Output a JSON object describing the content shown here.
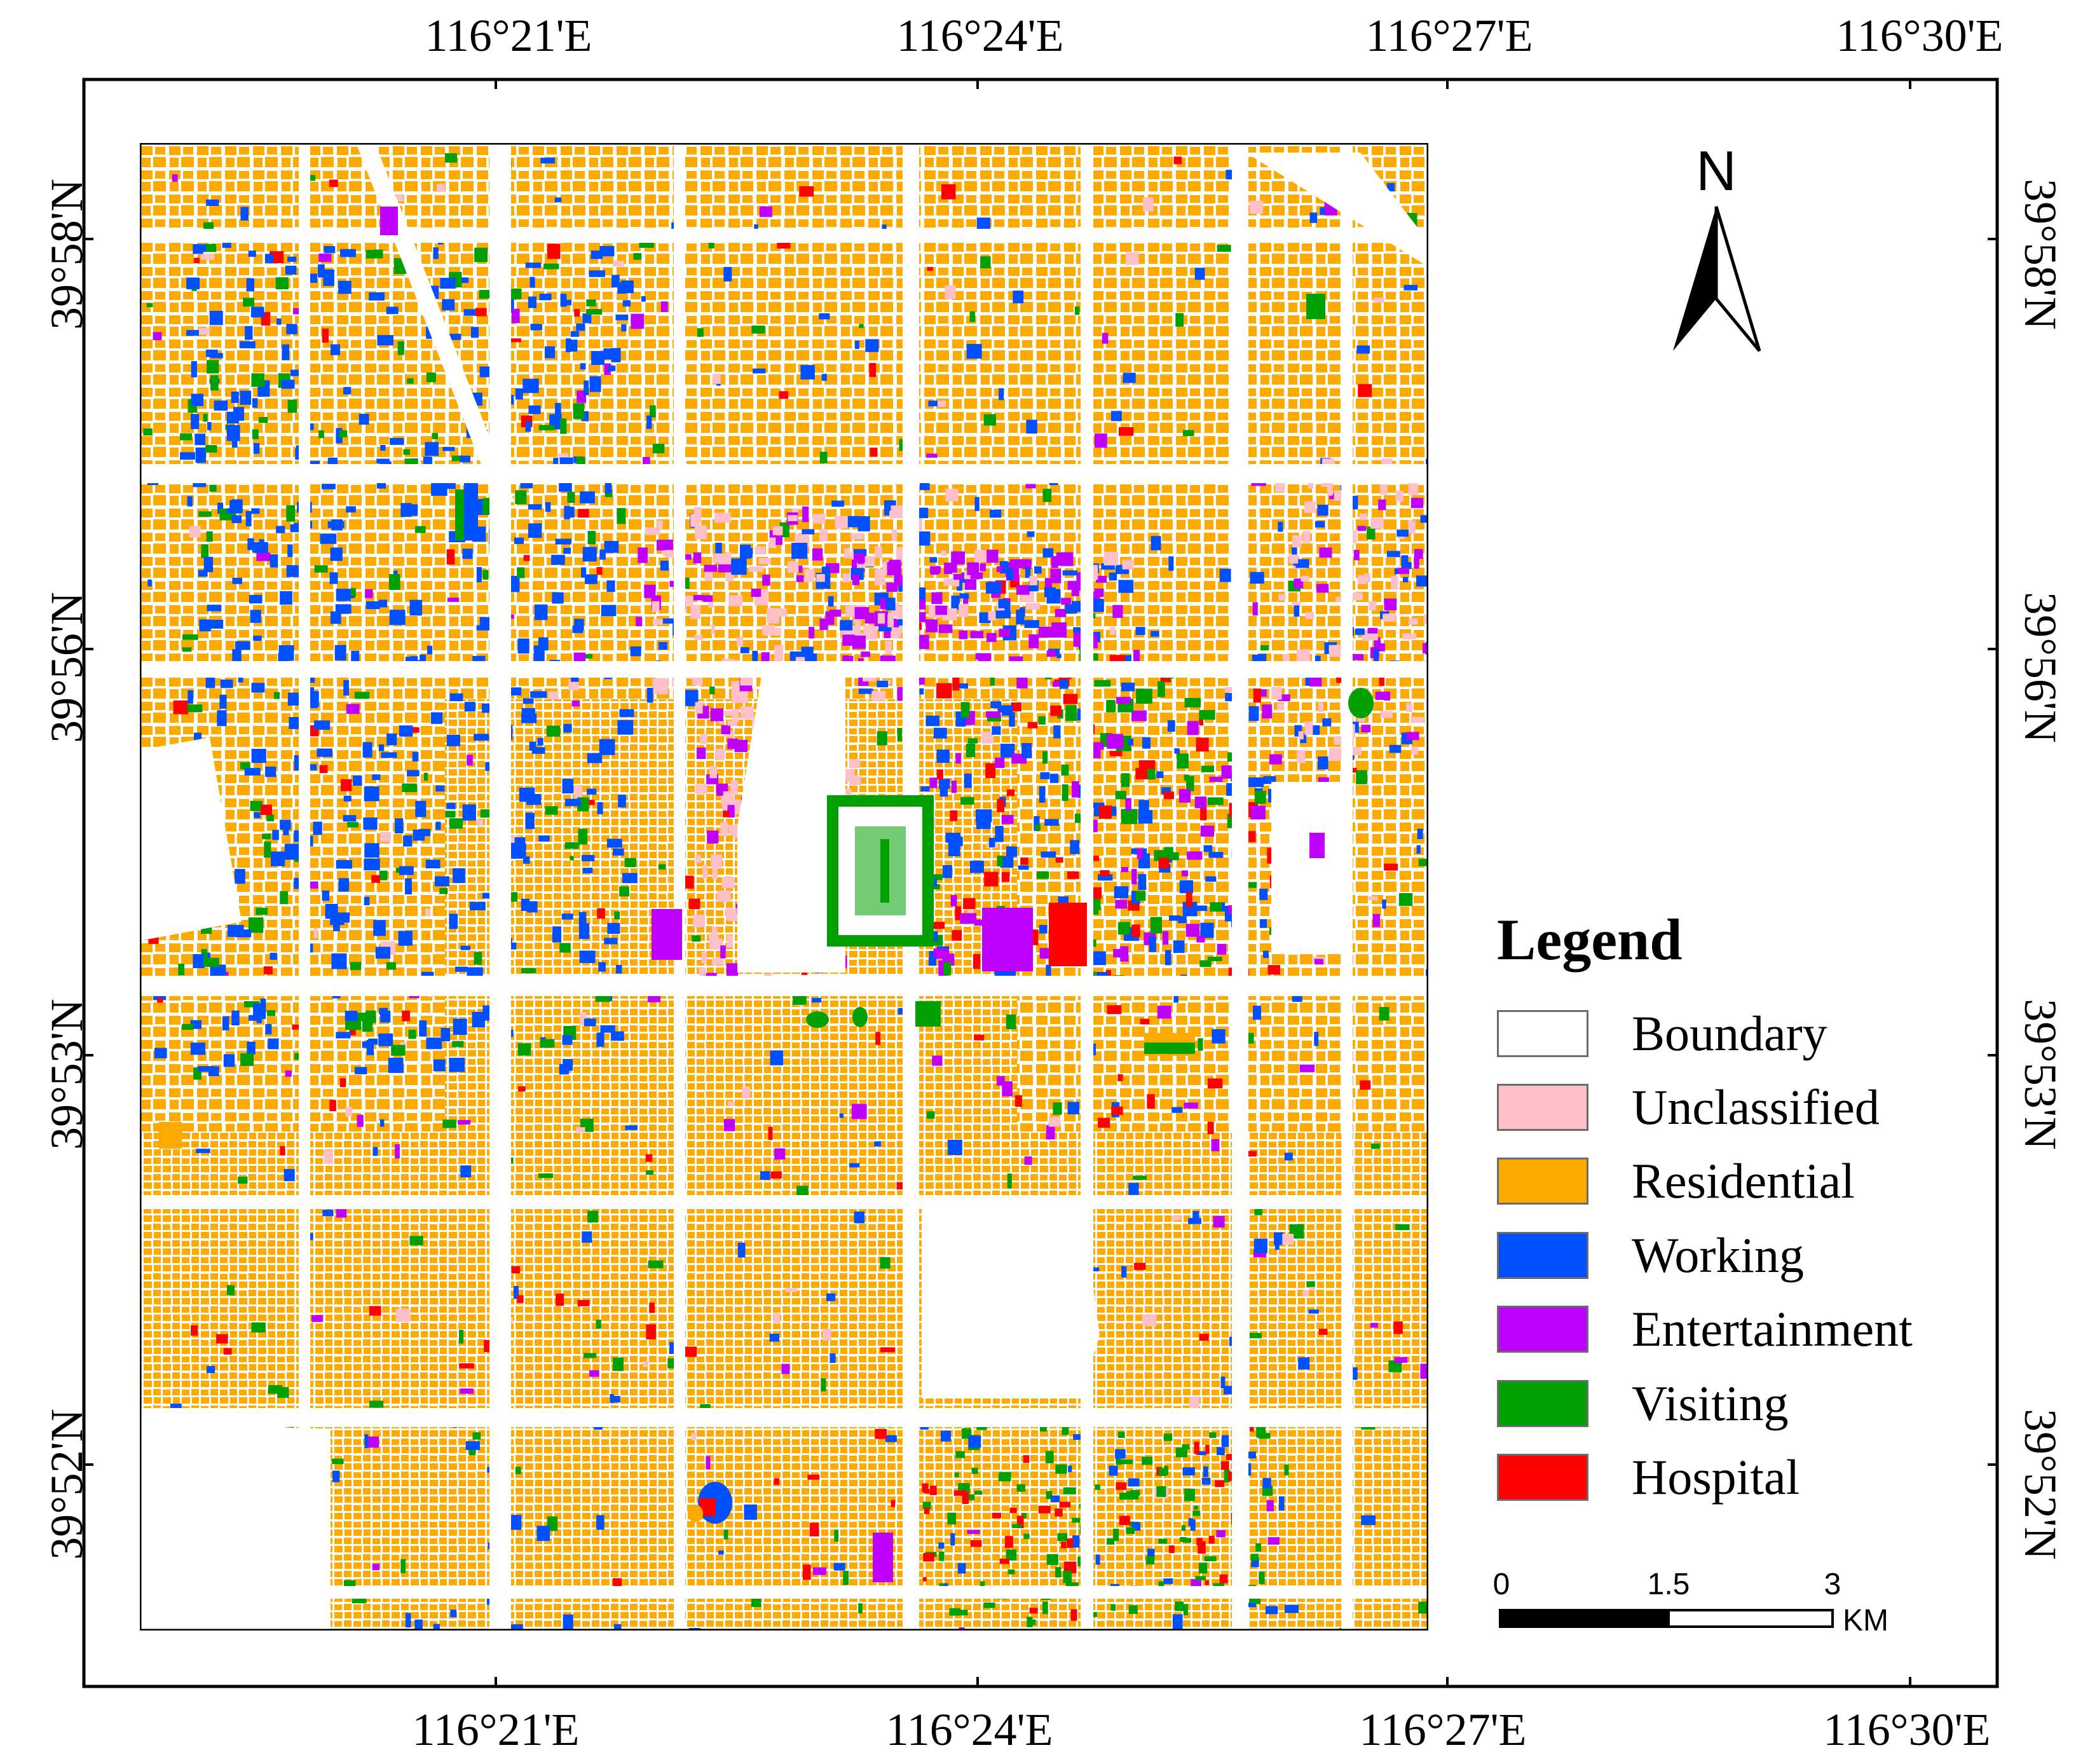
{
  "coords": {
    "top": [
      "116°21'E",
      "116°24'E",
      "116°27'E",
      "116°30'E"
    ],
    "bottom": [
      "116°21'E",
      "116°24'E",
      "116°27'E",
      "116°30'E"
    ],
    "left": [
      "39°58'N",
      "39°56'N",
      "39°53'N",
      "39°52'N"
    ],
    "right": [
      "39°58'N",
      "39°56'N",
      "39°53'N",
      "39°52'N"
    ]
  },
  "north_arrow": {
    "letter": "N"
  },
  "legend": {
    "title": "Legend",
    "items": [
      {
        "label": "Boundary",
        "color": "#ffffff"
      },
      {
        "label": "Unclassified",
        "color": "#ffc0c8"
      },
      {
        "label": "Residential",
        "color": "#ffaa00"
      },
      {
        "label": "Working",
        "color": "#0050ff"
      },
      {
        "label": "Entertainment",
        "color": "#c000ff"
      },
      {
        "label": "Visiting",
        "color": "#00a000"
      },
      {
        "label": "Hospital",
        "color": "#ff0000"
      }
    ]
  },
  "scale_bar": {
    "ticks": [
      "0",
      "1.5",
      "3"
    ],
    "unit": "KM"
  }
}
